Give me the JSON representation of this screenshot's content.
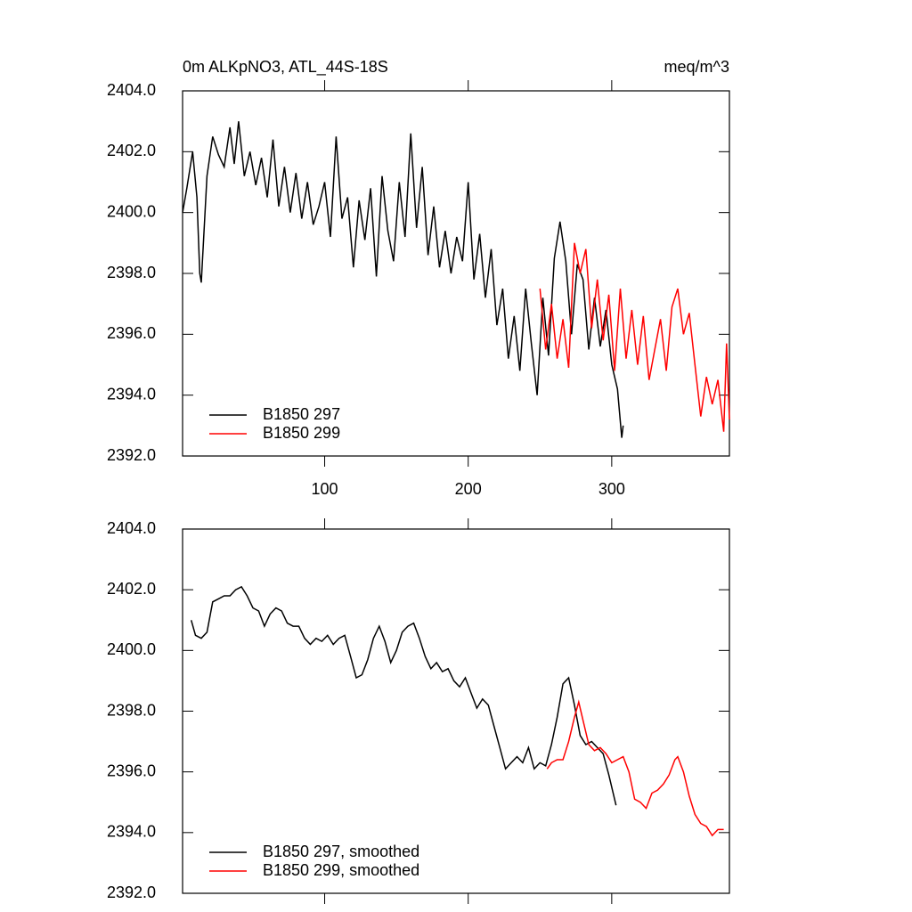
{
  "chart_data": [
    {
      "type": "line",
      "title": "0m ALKpNO3, ATL_44S-18S",
      "right_title": "meq/m^3",
      "xlim": [
        1,
        382
      ],
      "xticks": [
        100,
        200,
        300
      ],
      "xtick_labels": true,
      "ylim": [
        2392,
        2404
      ],
      "yticks": [
        {
          "value": 2392,
          "label": "2392.0"
        },
        {
          "value": 2394,
          "label": "2394.0"
        },
        {
          "value": 2396,
          "label": "2396.0"
        },
        {
          "value": 2398,
          "label": "2398.0"
        },
        {
          "value": 2400,
          "label": "2400.0"
        },
        {
          "value": 2402,
          "label": "2402.0"
        },
        {
          "value": 2404,
          "label": "2404.0"
        }
      ],
      "legend": "lower left",
      "series": [
        {
          "name": "B1850 297",
          "color": "#000000",
          "x": [
            1,
            4,
            8,
            11,
            13,
            14,
            18,
            22,
            26,
            30,
            34,
            37,
            40,
            44,
            48,
            52,
            56,
            60,
            64,
            68,
            72,
            76,
            80,
            84,
            88,
            92,
            96,
            100,
            104,
            108,
            112,
            116,
            120,
            124,
            128,
            132,
            136,
            140,
            144,
            148,
            152,
            156,
            160,
            164,
            168,
            172,
            176,
            180,
            184,
            188,
            192,
            196,
            200,
            204,
            208,
            212,
            216,
            220,
            224,
            228,
            232,
            236,
            240,
            244,
            248,
            252,
            256,
            260,
            264,
            268,
            272,
            276,
            280,
            284,
            288,
            292,
            296,
            300,
            304,
            307,
            308
          ],
          "values": [
            2400.0,
            2400.8,
            2402.0,
            2400.5,
            2398.0,
            2397.7,
            2401.2,
            2402.5,
            2401.9,
            2401.5,
            2402.8,
            2401.6,
            2403.0,
            2401.2,
            2402.0,
            2400.9,
            2401.8,
            2400.5,
            2402.4,
            2400.2,
            2401.5,
            2400.0,
            2401.3,
            2399.8,
            2401.0,
            2399.6,
            2400.2,
            2401.0,
            2399.2,
            2402.5,
            2399.8,
            2400.5,
            2398.2,
            2400.4,
            2399.1,
            2400.8,
            2397.9,
            2401.2,
            2399.4,
            2398.4,
            2401.0,
            2399.2,
            2402.6,
            2399.5,
            2401.5,
            2398.6,
            2400.2,
            2398.2,
            2399.4,
            2398.0,
            2399.2,
            2398.4,
            2401.0,
            2397.8,
            2399.3,
            2397.2,
            2398.8,
            2396.3,
            2397.5,
            2395.2,
            2396.6,
            2394.8,
            2397.5,
            2395.7,
            2394.0,
            2397.2,
            2395.3,
            2398.5,
            2399.7,
            2398.4,
            2396.0,
            2398.3,
            2397.8,
            2395.5,
            2397.2,
            2395.6,
            2396.8,
            2395.0,
            2394.2,
            2392.6,
            2393.0
          ]
        },
        {
          "name": "B1850 299",
          "color": "#ff0000",
          "x": [
            250,
            254,
            258,
            262,
            266,
            270,
            274,
            278,
            282,
            286,
            290,
            294,
            298,
            302,
            306,
            310,
            314,
            318,
            322,
            326,
            330,
            334,
            338,
            342,
            346,
            350,
            354,
            358,
            362,
            366,
            370,
            374,
            378,
            380,
            382
          ],
          "values": [
            2397.5,
            2395.5,
            2397.0,
            2395.2,
            2396.5,
            2394.9,
            2399.0,
            2398.0,
            2398.8,
            2396.2,
            2397.8,
            2395.8,
            2397.3,
            2394.8,
            2397.5,
            2395.2,
            2396.8,
            2395.0,
            2396.6,
            2394.5,
            2395.5,
            2396.5,
            2394.8,
            2396.9,
            2397.5,
            2396.0,
            2396.7,
            2395.0,
            2393.3,
            2394.6,
            2393.7,
            2394.5,
            2392.8,
            2395.7,
            2393.2
          ]
        }
      ]
    },
    {
      "type": "line",
      "xlim": [
        1,
        382
      ],
      "xticks": [
        100,
        200,
        300
      ],
      "xtick_labels": false,
      "ylim": [
        2392,
        2404
      ],
      "yticks": [
        {
          "value": 2392,
          "label": "2392.0"
        },
        {
          "value": 2394,
          "label": "2394.0"
        },
        {
          "value": 2396,
          "label": "2396.0"
        },
        {
          "value": 2398,
          "label": "2398.0"
        },
        {
          "value": 2400,
          "label": "2400.0"
        },
        {
          "value": 2402,
          "label": "2402.0"
        },
        {
          "value": 2404,
          "label": "2404.0"
        }
      ],
      "legend": "lower left",
      "series": [
        {
          "name": "B1850 297, smoothed",
          "color": "#000000",
          "x": [
            7,
            10,
            14,
            18,
            22,
            26,
            30,
            34,
            38,
            42,
            46,
            50,
            54,
            58,
            62,
            66,
            70,
            74,
            78,
            82,
            86,
            90,
            94,
            98,
            102,
            106,
            110,
            114,
            118,
            122,
            126,
            130,
            134,
            138,
            142,
            146,
            150,
            154,
            158,
            162,
            166,
            170,
            174,
            178,
            182,
            186,
            190,
            194,
            198,
            202,
            206,
            210,
            214,
            218,
            222,
            226,
            230,
            234,
            238,
            242,
            246,
            250,
            254,
            258,
            262,
            266,
            270,
            274,
            278,
            282,
            286,
            290,
            294,
            298,
            303
          ],
          "values": [
            2401.0,
            2400.5,
            2400.4,
            2400.6,
            2401.6,
            2401.7,
            2401.8,
            2401.8,
            2402.0,
            2402.1,
            2401.8,
            2401.4,
            2401.3,
            2400.8,
            2401.2,
            2401.4,
            2401.3,
            2400.9,
            2400.8,
            2400.8,
            2400.4,
            2400.2,
            2400.4,
            2400.3,
            2400.5,
            2400.2,
            2400.4,
            2400.5,
            2399.8,
            2399.1,
            2399.2,
            2399.7,
            2400.4,
            2400.8,
            2400.3,
            2399.6,
            2400.0,
            2400.6,
            2400.8,
            2400.9,
            2400.4,
            2399.8,
            2399.4,
            2399.6,
            2399.3,
            2399.4,
            2399.0,
            2398.8,
            2399.1,
            2398.6,
            2398.1,
            2398.4,
            2398.2,
            2397.5,
            2396.8,
            2396.1,
            2396.3,
            2396.5,
            2396.3,
            2396.8,
            2396.1,
            2396.3,
            2396.2,
            2396.9,
            2397.8,
            2398.9,
            2399.1,
            2398.2,
            2397.2,
            2396.9,
            2397.0,
            2396.8,
            2396.6,
            2395.9,
            2394.9
          ]
        },
        {
          "name": "B1850 299, smoothed",
          "color": "#ff0000",
          "x": [
            255,
            258,
            262,
            266,
            270,
            274,
            277,
            280,
            284,
            288,
            292,
            296,
            300,
            304,
            308,
            312,
            316,
            320,
            324,
            328,
            332,
            336,
            340,
            344,
            346,
            350,
            354,
            358,
            362,
            366,
            370,
            374,
            378
          ],
          "values": [
            2396.1,
            2396.3,
            2396.4,
            2396.4,
            2397.0,
            2397.8,
            2398.3,
            2397.7,
            2396.9,
            2396.7,
            2396.8,
            2396.6,
            2396.3,
            2396.4,
            2396.5,
            2396.0,
            2395.1,
            2395.0,
            2394.8,
            2395.3,
            2395.4,
            2395.6,
            2395.9,
            2396.4,
            2396.5,
            2396.0,
            2395.2,
            2394.6,
            2394.3,
            2394.2,
            2393.9,
            2394.1,
            2394.1
          ]
        }
      ]
    }
  ]
}
